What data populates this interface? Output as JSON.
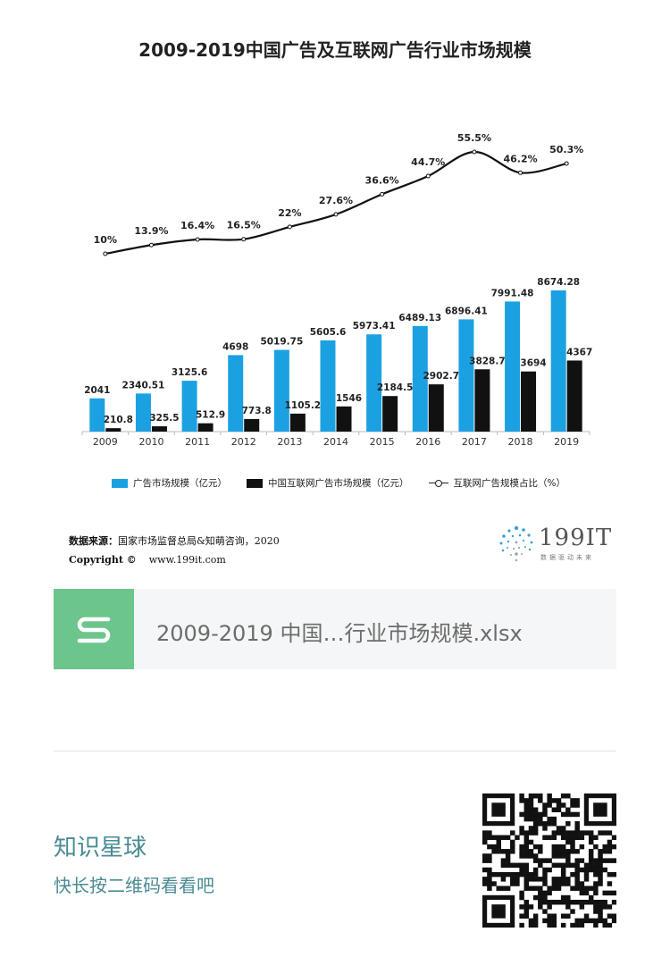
{
  "title": "2009-2019中国广告及互联网广告行业市场规模",
  "chart_data": {
    "type": "bar",
    "categories": [
      "2009",
      "2010",
      "2011",
      "2012",
      "2013",
      "2014",
      "2015",
      "2016",
      "2017",
      "2018",
      "2019"
    ],
    "series": [
      {
        "name": "广告市场规模（亿元）",
        "type": "bar",
        "color": "#1ba1e2",
        "values": [
          2041,
          2340.51,
          3125.6,
          4698,
          5019.75,
          5605.6,
          5973.41,
          6489.13,
          6896.41,
          7991.48,
          8674.28
        ],
        "labels": [
          "2041",
          "2340.51",
          "3125.6",
          "4698",
          "5019.75",
          "5605.6",
          "5973.41",
          "6489.13",
          "6896.41",
          "7991.48",
          "8674.28"
        ]
      },
      {
        "name": "中国互联网广告市场规模（亿元）",
        "type": "bar",
        "color": "#111111",
        "values": [
          210.8,
          325.5,
          512.9,
          773.8,
          1105.2,
          1546,
          2184.5,
          2902.7,
          3828.7,
          3694,
          4367
        ],
        "labels": [
          "210.8",
          "325.5",
          "512.9",
          "773.8",
          "1105.2",
          "1546",
          "2184.5",
          "2902.7",
          "3828.7",
          "3694",
          "4367"
        ]
      },
      {
        "name": "互联网广告规模占比（%）",
        "type": "line",
        "color": "#111111",
        "values": [
          10,
          13.9,
          16.4,
          16.5,
          22,
          27.6,
          36.6,
          44.7,
          55.5,
          46.2,
          50.3
        ],
        "labels": [
          "10%",
          "13.9%",
          "16.4%",
          "16.5%",
          "22%",
          "27.6%",
          "36.6%",
          "44.7%",
          "55.5%",
          "46.2%",
          "50.3%"
        ]
      }
    ],
    "legend": "bottom"
  },
  "source": {
    "label": "数据来源：",
    "text": "国家市场监督总局&知萌咨询，2020",
    "copyright_label": "Copyright ©",
    "url": "www.199it.com"
  },
  "logo": {
    "name": "199IT",
    "tagline": "数据驱动未来"
  },
  "file": {
    "icon": "wps-sheet-icon",
    "name": "2009-2019 中国…行业市场规模.xlsx",
    "icon_color": "#6cc58a"
  },
  "footer": {
    "title": "知识星球",
    "subtitle": "快长按二维码看看吧"
  },
  "qr": {
    "icon": "qr-code"
  }
}
